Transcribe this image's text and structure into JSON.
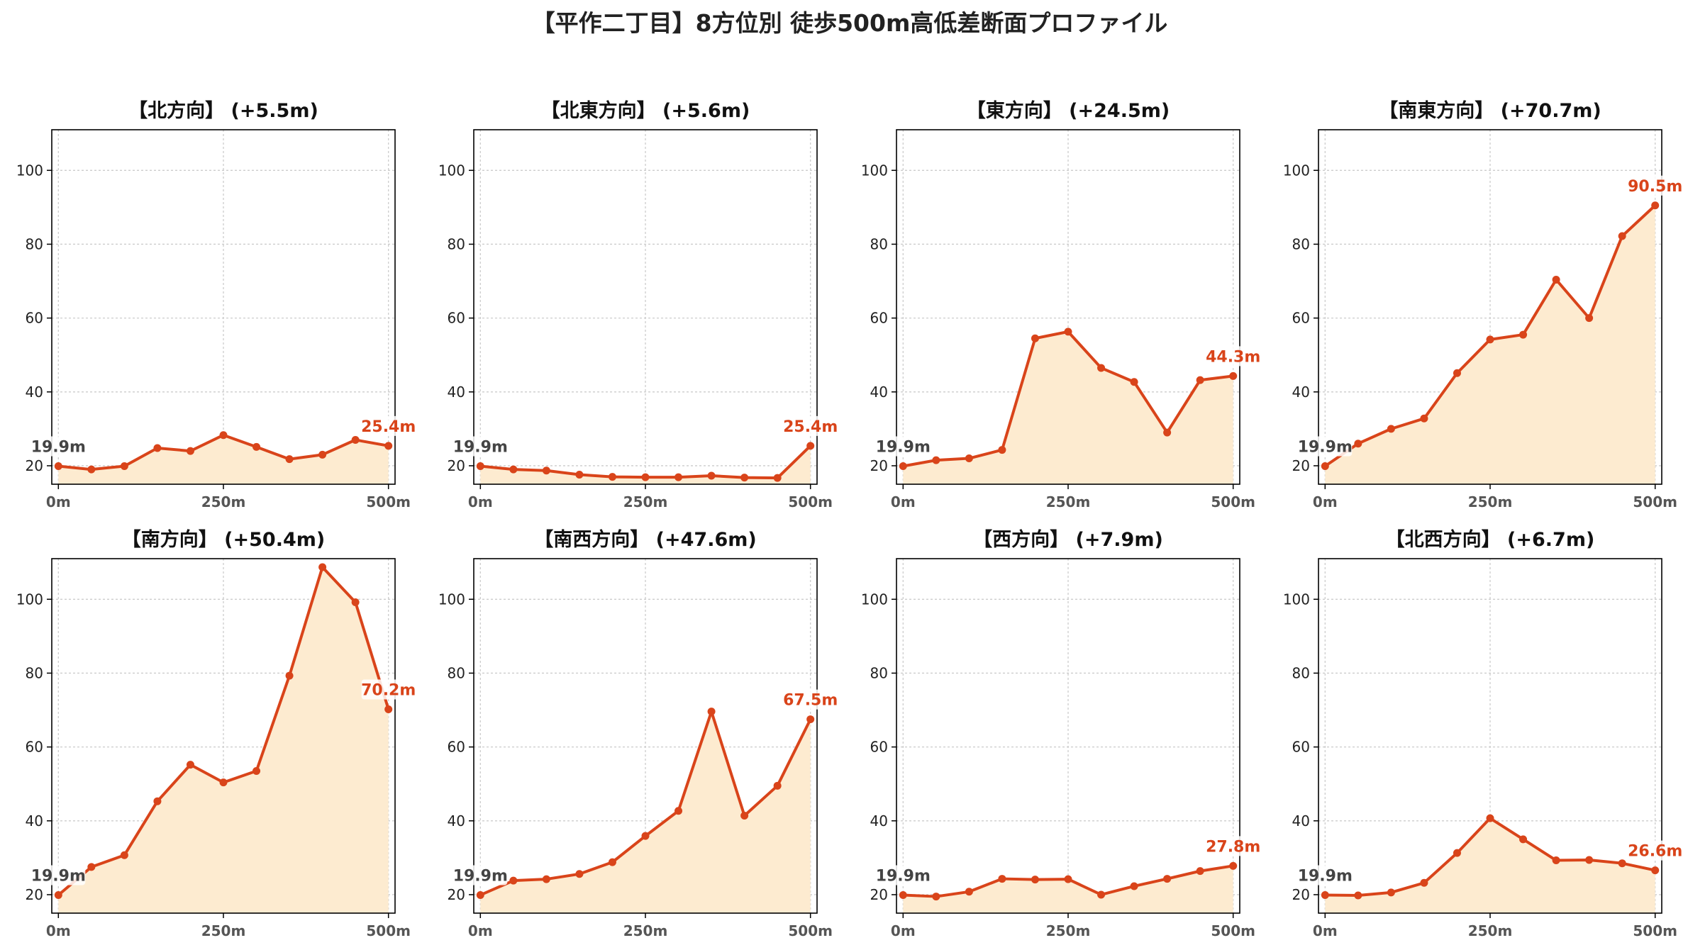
{
  "figure": {
    "title": "【平作二丁目】8方位別 徒歩500m高低差断面プロファイル"
  },
  "colors": {
    "line": "#d9441a",
    "fill": "#fdebd0",
    "grid": "#cccccc",
    "start_label": "#444444",
    "end_label": "#d9441a"
  },
  "chart_data": [
    {
      "type": "area",
      "title": "【北方向】 (+5.5m)",
      "x": [
        0,
        50,
        100,
        150,
        200,
        250,
        300,
        350,
        400,
        450,
        500
      ],
      "x_ticks": [
        0,
        250,
        500
      ],
      "x_tick_labels": [
        "0m",
        "250m",
        "500m"
      ],
      "y": [
        19.9,
        19.0,
        19.9,
        24.8,
        24.0,
        28.3,
        25.1,
        21.8,
        23.0,
        27.0,
        25.4
      ],
      "y_ticks": [
        20,
        40,
        60,
        80,
        100
      ],
      "ylim": [
        15,
        111
      ],
      "xlim": [
        -10,
        510
      ],
      "grid": true,
      "start_label": "19.9m",
      "end_label": "25.4m"
    },
    {
      "type": "area",
      "title": "【北東方向】 (+5.6m)",
      "x": [
        0,
        50,
        100,
        150,
        200,
        250,
        300,
        350,
        400,
        450,
        500
      ],
      "x_ticks": [
        0,
        250,
        500
      ],
      "x_tick_labels": [
        "0m",
        "250m",
        "500m"
      ],
      "y": [
        19.9,
        19.0,
        18.7,
        17.6,
        17.0,
        16.9,
        16.9,
        17.3,
        16.8,
        16.7,
        25.4
      ],
      "y_ticks": [
        20,
        40,
        60,
        80,
        100
      ],
      "ylim": [
        15,
        111
      ],
      "xlim": [
        -10,
        510
      ],
      "grid": true,
      "start_label": "19.9m",
      "end_label": "25.4m"
    },
    {
      "type": "area",
      "title": "【東方向】 (+24.5m)",
      "x": [
        0,
        50,
        100,
        150,
        200,
        250,
        300,
        350,
        400,
        450,
        500
      ],
      "x_ticks": [
        0,
        250,
        500
      ],
      "x_tick_labels": [
        "0m",
        "250m",
        "500m"
      ],
      "y": [
        19.9,
        21.5,
        22.0,
        24.3,
        54.5,
        56.3,
        46.5,
        42.7,
        29.0,
        43.2,
        44.3
      ],
      "y_ticks": [
        20,
        40,
        60,
        80,
        100
      ],
      "ylim": [
        15,
        111
      ],
      "xlim": [
        -10,
        510
      ],
      "grid": true,
      "start_label": "19.9m",
      "end_label": "44.3m"
    },
    {
      "type": "area",
      "title": "【南東方向】 (+70.7m)",
      "x": [
        0,
        50,
        100,
        150,
        200,
        250,
        300,
        350,
        400,
        450,
        500
      ],
      "x_ticks": [
        0,
        250,
        500
      ],
      "x_tick_labels": [
        "0m",
        "250m",
        "500m"
      ],
      "y": [
        19.9,
        26.0,
        30.0,
        32.8,
        45.1,
        54.2,
        55.5,
        70.4,
        60.0,
        82.2,
        90.5
      ],
      "y_ticks": [
        20,
        40,
        60,
        80,
        100
      ],
      "ylim": [
        15,
        111
      ],
      "xlim": [
        -10,
        510
      ],
      "grid": true,
      "start_label": "19.9m",
      "end_label": "90.5m"
    },
    {
      "type": "area",
      "title": "【南方向】 (+50.4m)",
      "x": [
        0,
        50,
        100,
        150,
        200,
        250,
        300,
        350,
        400,
        450,
        500
      ],
      "x_ticks": [
        0,
        250,
        500
      ],
      "x_tick_labels": [
        "0m",
        "250m",
        "500m"
      ],
      "y": [
        19.9,
        27.5,
        30.7,
        45.3,
        55.2,
        50.4,
        53.5,
        79.3,
        108.7,
        99.2,
        70.2
      ],
      "y_ticks": [
        20,
        40,
        60,
        80,
        100
      ],
      "ylim": [
        15,
        111
      ],
      "xlim": [
        -10,
        510
      ],
      "grid": true,
      "start_label": "19.9m",
      "end_label": "70.2m"
    },
    {
      "type": "area",
      "title": "【南西方向】 (+47.6m)",
      "x": [
        0,
        50,
        100,
        150,
        200,
        250,
        300,
        350,
        400,
        450,
        500
      ],
      "x_ticks": [
        0,
        250,
        500
      ],
      "x_tick_labels": [
        "0m",
        "250m",
        "500m"
      ],
      "y": [
        19.9,
        23.8,
        24.2,
        25.6,
        28.8,
        35.9,
        42.7,
        69.6,
        41.4,
        49.5,
        67.5
      ],
      "y_ticks": [
        20,
        40,
        60,
        80,
        100
      ],
      "ylim": [
        15,
        111
      ],
      "xlim": [
        -10,
        510
      ],
      "grid": true,
      "start_label": "19.9m",
      "end_label": "67.5m"
    },
    {
      "type": "area",
      "title": "【西方向】 (+7.9m)",
      "x": [
        0,
        50,
        100,
        150,
        200,
        250,
        300,
        350,
        400,
        450,
        500
      ],
      "x_ticks": [
        0,
        250,
        500
      ],
      "x_tick_labels": [
        "0m",
        "250m",
        "500m"
      ],
      "y": [
        19.9,
        19.5,
        20.8,
        24.3,
        24.1,
        24.2,
        20.0,
        22.3,
        24.3,
        26.4,
        27.8
      ],
      "y_ticks": [
        20,
        40,
        60,
        80,
        100
      ],
      "ylim": [
        15,
        111
      ],
      "xlim": [
        -10,
        510
      ],
      "grid": true,
      "start_label": "19.9m",
      "end_label": "27.8m"
    },
    {
      "type": "area",
      "title": "【北西方向】 (+6.7m)",
      "x": [
        0,
        50,
        100,
        150,
        200,
        250,
        300,
        350,
        400,
        450,
        500
      ],
      "x_ticks": [
        0,
        250,
        500
      ],
      "x_tick_labels": [
        "0m",
        "250m",
        "500m"
      ],
      "y": [
        19.9,
        19.8,
        20.6,
        23.2,
        31.3,
        40.7,
        35.0,
        29.3,
        29.4,
        28.5,
        26.6
      ],
      "y_ticks": [
        20,
        40,
        60,
        80,
        100
      ],
      "ylim": [
        15,
        111
      ],
      "xlim": [
        -10,
        510
      ],
      "grid": true,
      "start_label": "19.9m",
      "end_label": "26.6m"
    }
  ]
}
